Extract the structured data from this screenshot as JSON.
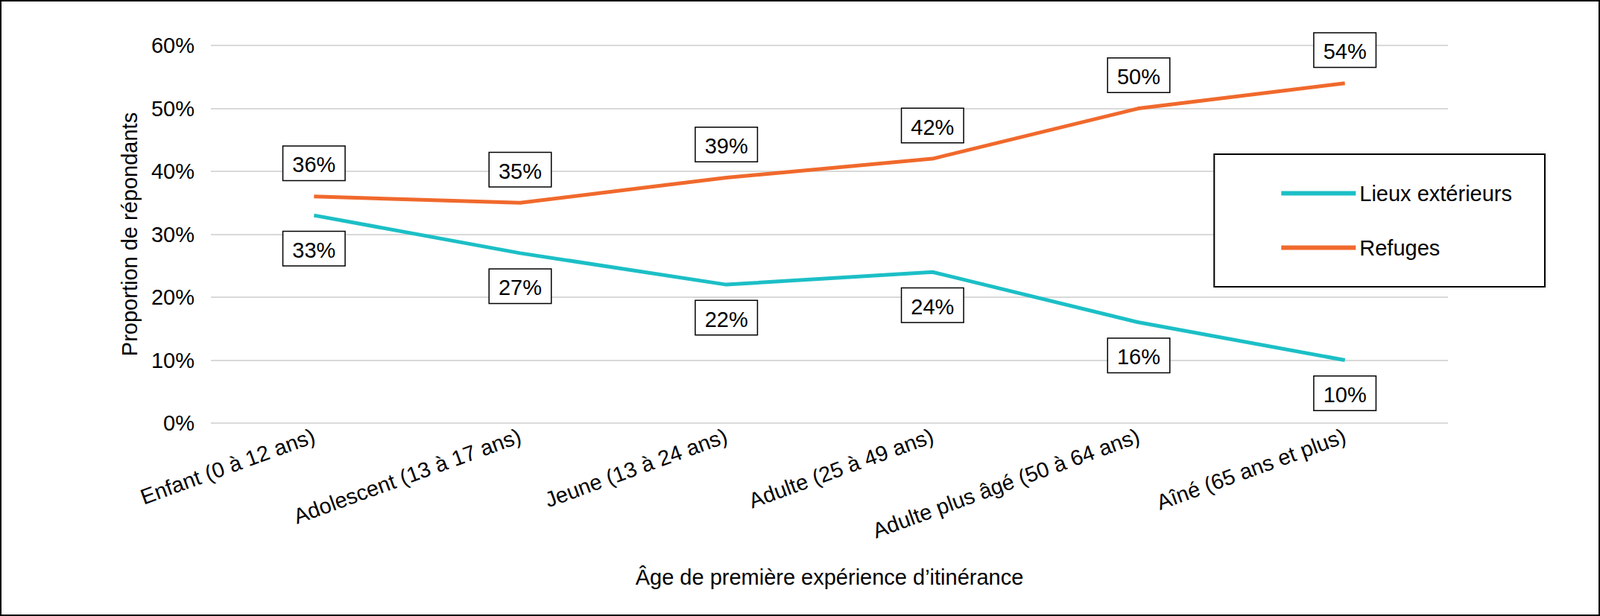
{
  "chart_data": {
    "type": "line",
    "x_label": "Âge de première expérience d’itinérance",
    "y_label": "Proportion de répondants",
    "categories": [
      "Enfant (0 à 12 ans)",
      "Adolescent (13 à 17 ans)",
      "Jeune (13 à 24 ans)",
      "Adulte (25 à 49 ans)",
      "Adulte plus âgé (50 à 64 ans)",
      "Aîné (65 ans et plus)"
    ],
    "series": [
      {
        "name": "Lieux extérieurs",
        "color": "#1cbfc6",
        "values": [
          33,
          27,
          22,
          24,
          16,
          10
        ],
        "value_labels": [
          "33%",
          "27%",
          "22%",
          "24%",
          "16%",
          "10%"
        ]
      },
      {
        "name": "Refuges",
        "color": "#f0692c",
        "values": [
          36,
          35,
          39,
          42,
          50,
          54
        ],
        "value_labels": [
          "36%",
          "35%",
          "39%",
          "42%",
          "50%",
          "54%"
        ]
      }
    ],
    "ylim": [
      0,
      60
    ],
    "yticks": [
      {
        "value": 0,
        "label": "0%"
      },
      {
        "value": 10,
        "label": "10%"
      },
      {
        "value": 20,
        "label": "20%"
      },
      {
        "value": 30,
        "label": "30%"
      },
      {
        "value": 40,
        "label": "40%"
      },
      {
        "value": 50,
        "label": "50%"
      },
      {
        "value": 60,
        "label": "60%"
      }
    ],
    "grid": true,
    "legend": "right",
    "data_labels": true
  }
}
